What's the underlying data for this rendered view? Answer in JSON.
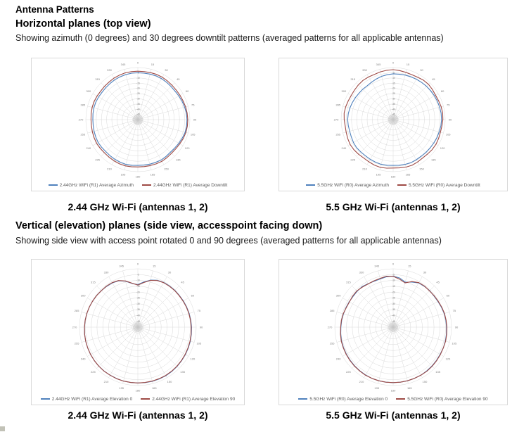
{
  "header": {
    "title": "Antenna Patterns"
  },
  "sections": [
    {
      "heading": "Horizontal planes (top view)",
      "description": "Showing azimuth (0 degrees) and 30 degrees downtilt patterns (averaged patterns for all applicable antennas)"
    },
    {
      "heading": "Vertical (elevation) planes (side view, accesspoint facing down)",
      "description": "Showing side view with access point rotated 0 and 90 degrees (averaged patterns for all applicable antennas)"
    }
  ],
  "captions": [
    "2.44 GHz Wi-Fi (antennas 1, 2)",
    "5.5 GHz Wi-Fi (antennas 1, 2)",
    "2.44 GHz Wi-Fi (antennas 1, 2)",
    "5.5 GHz Wi-Fi (antennas 1, 2)"
  ],
  "colors": {
    "series_blue": "#4f81bd",
    "series_red": "#9e4a45",
    "grid": "#d9d9d9",
    "axis_text": "#7f7f7f",
    "legend_text": "#595959",
    "box_border": "#d9d9d9"
  },
  "chart_data": [
    {
      "type": "polar-line",
      "caption": "2.44 GHz Wi-Fi (antennas 1, 2)",
      "grid": {
        "rings": 10,
        "spoke_step": 15
      },
      "angle_labels": [
        "0",
        "15",
        "30",
        "45",
        "60",
        "75",
        "90",
        "105",
        "120",
        "135",
        "150",
        "165",
        "180",
        "195",
        "210",
        "225",
        "240",
        "255",
        "270",
        "285",
        "300",
        "315",
        "330",
        "345"
      ],
      "radial_labels": [
        "-5",
        "-10",
        "-15",
        "-20",
        "-25",
        "-30",
        "-35",
        "-40",
        "-45"
      ],
      "series": [
        {
          "name": "2.44GHz WiFi (R1) Average Azimuth",
          "color": "#4f81bd",
          "r": [
            0.9,
            0.9,
            0.905,
            0.91,
            0.91,
            0.905,
            0.9,
            0.9,
            0.91,
            0.92,
            0.93,
            0.94,
            0.945,
            0.945,
            0.94,
            0.925,
            0.91,
            0.895,
            0.885,
            0.89,
            0.895,
            0.89,
            0.885,
            0.88,
            0.88,
            0.885,
            0.89,
            0.885,
            0.88,
            0.875,
            0.87,
            0.875,
            0.88,
            0.875,
            0.87,
            0.865,
            0.865,
            0.87,
            0.875,
            0.875,
            0.87,
            0.865,
            0.87,
            0.875,
            0.885,
            0.89,
            0.895,
            0.9
          ]
        },
        {
          "name": "2.44GHz WiFi (R1) Average Downtilt",
          "color": "#9e4a45",
          "r": [
            0.93,
            0.93,
            0.935,
            0.94,
            0.94,
            0.935,
            0.93,
            0.93,
            0.935,
            0.94,
            0.95,
            0.955,
            0.96,
            0.96,
            0.955,
            0.945,
            0.93,
            0.92,
            0.915,
            0.92,
            0.925,
            0.92,
            0.915,
            0.91,
            0.91,
            0.915,
            0.92,
            0.92,
            0.915,
            0.91,
            0.905,
            0.91,
            0.915,
            0.91,
            0.905,
            0.9,
            0.9,
            0.905,
            0.91,
            0.91,
            0.905,
            0.9,
            0.905,
            0.91,
            0.92,
            0.925,
            0.93,
            0.93
          ]
        }
      ]
    },
    {
      "type": "polar-line",
      "caption": "5.5 GHz Wi-Fi (antennas 1, 2)",
      "grid": {
        "rings": 10,
        "spoke_step": 15
      },
      "angle_labels": [
        "0",
        "15",
        "30",
        "45",
        "60",
        "75",
        "90",
        "105",
        "120",
        "135",
        "150",
        "165",
        "180",
        "195",
        "210",
        "225",
        "240",
        "255",
        "270",
        "285",
        "300",
        "315",
        "330",
        "345"
      ],
      "radial_labels": [
        "-5",
        "-10",
        "-15",
        "-20",
        "-25",
        "-30",
        "-35",
        "-40",
        "-45"
      ],
      "series": [
        {
          "name": "5.5GHz WiFi (R0) Average Azimuth",
          "color": "#4f81bd",
          "r": [
            0.88,
            0.88,
            0.885,
            0.89,
            0.895,
            0.9,
            0.905,
            0.91,
            0.915,
            0.92,
            0.925,
            0.93,
            0.93,
            0.925,
            0.915,
            0.91,
            0.9,
            0.895,
            0.89,
            0.885,
            0.89,
            0.895,
            0.89,
            0.885,
            0.88,
            0.885,
            0.89,
            0.885,
            0.88,
            0.875,
            0.88,
            0.885,
            0.88,
            0.87,
            0.865,
            0.87,
            0.875,
            0.87,
            0.86,
            0.85,
            0.84,
            0.83,
            0.825,
            0.82,
            0.83,
            0.845,
            0.86,
            0.87
          ]
        },
        {
          "name": "5.5GHz WiFi (R0) Average Downtilt",
          "color": "#9e4a45",
          "r": [
            0.96,
            0.95,
            0.94,
            0.935,
            0.94,
            0.955,
            0.96,
            0.95,
            0.94,
            0.945,
            0.955,
            0.96,
            0.955,
            0.945,
            0.94,
            0.945,
            0.95,
            0.945,
            0.935,
            0.93,
            0.94,
            0.95,
            0.945,
            0.935,
            0.93,
            0.94,
            0.95,
            0.945,
            0.935,
            0.93,
            0.94,
            0.95,
            0.955,
            0.945,
            0.935,
            0.93,
            0.94,
            0.95,
            0.945,
            0.935,
            0.93,
            0.935,
            0.945,
            0.95,
            0.945,
            0.94,
            0.95,
            0.955
          ]
        }
      ]
    },
    {
      "type": "polar-line",
      "caption": "2.44 GHz Wi-Fi (antennas 1, 2)",
      "grid": {
        "rings": 10,
        "spoke_step": 15
      },
      "angle_labels": [
        "0",
        "15",
        "30",
        "45",
        "60",
        "75",
        "90",
        "105",
        "120",
        "135",
        "150",
        "165",
        "180",
        "195",
        "210",
        "225",
        "240",
        "255",
        "270",
        "285",
        "300",
        "315",
        "330",
        "345"
      ],
      "radial_labels": [
        "-5",
        "-10",
        "-15",
        "-20",
        "-25",
        "-30",
        "-35",
        "-40",
        "-45"
      ],
      "series": [
        {
          "name": "2.44GHz WiFi (R1) Average Elevation 0",
          "color": "#4f81bd",
          "r": [
            0.73,
            0.78,
            0.835,
            0.87,
            0.885,
            0.89,
            0.895,
            0.895,
            0.9,
            0.905,
            0.91,
            0.915,
            0.92,
            0.925,
            0.93,
            0.935,
            0.94,
            0.945,
            0.95,
            0.955,
            0.96,
            0.96,
            0.96,
            0.958,
            0.955,
            0.955,
            0.955,
            0.952,
            0.95,
            0.948,
            0.945,
            0.94,
            0.935,
            0.93,
            0.925,
            0.92,
            0.915,
            0.91,
            0.905,
            0.9,
            0.895,
            0.89,
            0.885,
            0.88,
            0.875,
            0.86,
            0.815,
            0.755
          ]
        },
        {
          "name": "2.44GHz WiFi (R1) Average Elevation 90",
          "color": "#9e4a45",
          "r": [
            0.72,
            0.77,
            0.83,
            0.865,
            0.88,
            0.885,
            0.89,
            0.89,
            0.895,
            0.9,
            0.905,
            0.91,
            0.915,
            0.92,
            0.925,
            0.93,
            0.935,
            0.94,
            0.945,
            0.95,
            0.955,
            0.955,
            0.955,
            0.955,
            0.955,
            0.955,
            0.955,
            0.955,
            0.95,
            0.95,
            0.945,
            0.94,
            0.935,
            0.93,
            0.925,
            0.92,
            0.915,
            0.91,
            0.905,
            0.9,
            0.895,
            0.89,
            0.885,
            0.885,
            0.88,
            0.865,
            0.82,
            0.76
          ]
        }
      ]
    },
    {
      "type": "polar-line",
      "caption": "5.5 GHz Wi-Fi (antennas 1, 2)",
      "grid": {
        "rings": 10,
        "spoke_step": 15
      },
      "angle_labels": [
        "0",
        "15",
        "30",
        "45",
        "60",
        "75",
        "90",
        "105",
        "120",
        "135",
        "150",
        "165",
        "180",
        "195",
        "210",
        "225",
        "240",
        "255",
        "270",
        "285",
        "300",
        "315",
        "330",
        "345"
      ],
      "radial_labels": [
        "-5",
        "-10",
        "-15",
        "-20",
        "-25",
        "-30",
        "-35",
        "-40",
        "-45"
      ],
      "series": [
        {
          "name": "5.5GHz WiFi (R0) Average Elevation 0",
          "color": "#4f81bd",
          "r": [
            0.875,
            0.85,
            0.8,
            0.835,
            0.875,
            0.88,
            0.885,
            0.88,
            0.885,
            0.895,
            0.905,
            0.91,
            0.915,
            0.92,
            0.925,
            0.93,
            0.93,
            0.935,
            0.94,
            0.945,
            0.95,
            0.95,
            0.95,
            0.95,
            0.95,
            0.95,
            0.95,
            0.95,
            0.945,
            0.94,
            0.935,
            0.93,
            0.925,
            0.92,
            0.915,
            0.905,
            0.895,
            0.89,
            0.88,
            0.875,
            0.87,
            0.865,
            0.87,
            0.875,
            0.86,
            0.85,
            0.855,
            0.87
          ]
        },
        {
          "name": "5.5GHz WiFi (R0) Average Elevation 90",
          "color": "#9e4a45",
          "r": [
            0.87,
            0.83,
            0.785,
            0.845,
            0.88,
            0.885,
            0.88,
            0.885,
            0.89,
            0.9,
            0.91,
            0.915,
            0.92,
            0.925,
            0.93,
            0.93,
            0.935,
            0.94,
            0.945,
            0.95,
            0.95,
            0.95,
            0.95,
            0.95,
            0.95,
            0.95,
            0.95,
            0.95,
            0.95,
            0.945,
            0.94,
            0.935,
            0.93,
            0.925,
            0.92,
            0.91,
            0.9,
            0.895,
            0.885,
            0.87,
            0.865,
            0.875,
            0.88,
            0.865,
            0.855,
            0.86,
            0.865,
            0.88
          ]
        }
      ]
    }
  ]
}
